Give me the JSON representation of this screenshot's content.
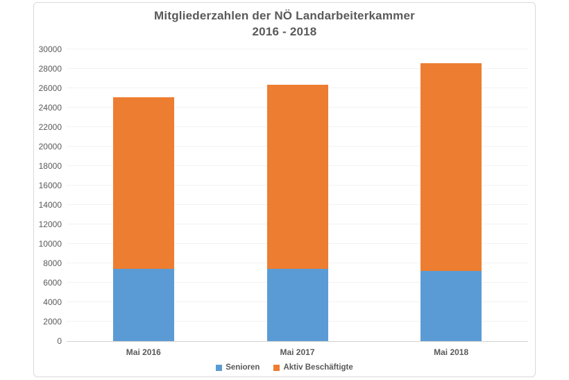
{
  "chart_data": {
    "type": "bar",
    "stacked": true,
    "title_line1": "Mitgliederzahlen der NÖ Landarbeiterkammer",
    "title_line2": "2016 - 2018",
    "categories": [
      "Mai 2016",
      "Mai 2017",
      "Mai 2018"
    ],
    "series": [
      {
        "name": "Senioren",
        "color": "#5B9BD5",
        "values": [
          7450,
          7450,
          7250
        ]
      },
      {
        "name": "Aktiv Beschäftigte",
        "color": "#ED7D31",
        "values": [
          17650,
          18900,
          21300
        ]
      }
    ],
    "totals": [
      25100,
      26350,
      28550
    ],
    "xlabel": "",
    "ylabel": "",
    "ylim": [
      0,
      30000
    ],
    "ytick_step": 2000,
    "grid": true,
    "legend_position": "bottom"
  },
  "styles": {
    "text_color": "#595959",
    "grid_color": "#F2F2F2",
    "axis_color": "#D0D0D0",
    "frame_border_color": "#D9D9D9",
    "background_color": "#FFFFFF"
  }
}
